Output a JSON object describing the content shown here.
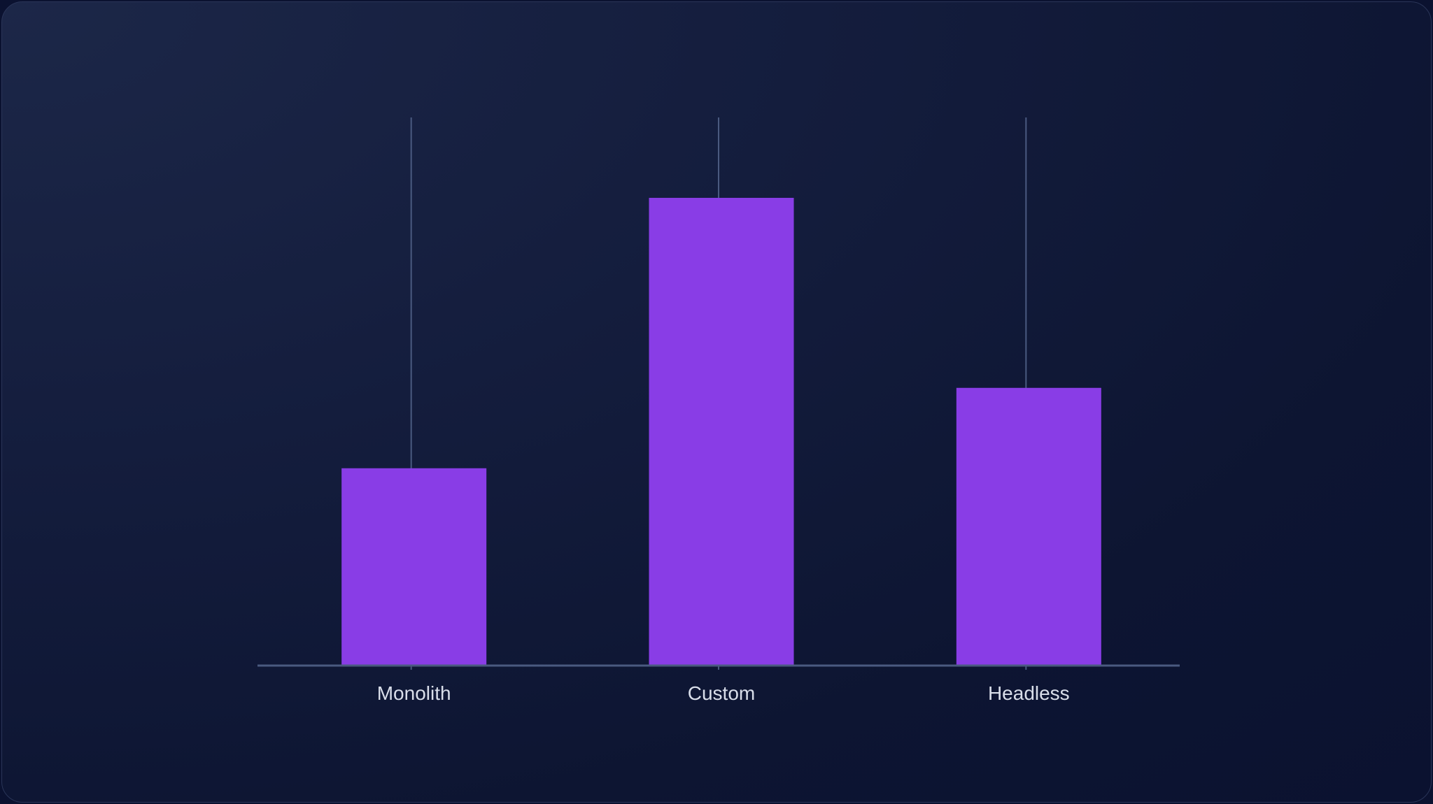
{
  "chart_data": {
    "type": "bar",
    "categories": [
      "Monolith",
      "Custom",
      "Headless"
    ],
    "values": [
      27,
      64,
      38
    ],
    "ylim": [
      0,
      75
    ],
    "grid": false,
    "colors": {
      "bar": "#893de6",
      "axis": "#4a5a80",
      "tick": "#4a5a80",
      "label": "#d9deea",
      "background": "#0d1532"
    }
  }
}
